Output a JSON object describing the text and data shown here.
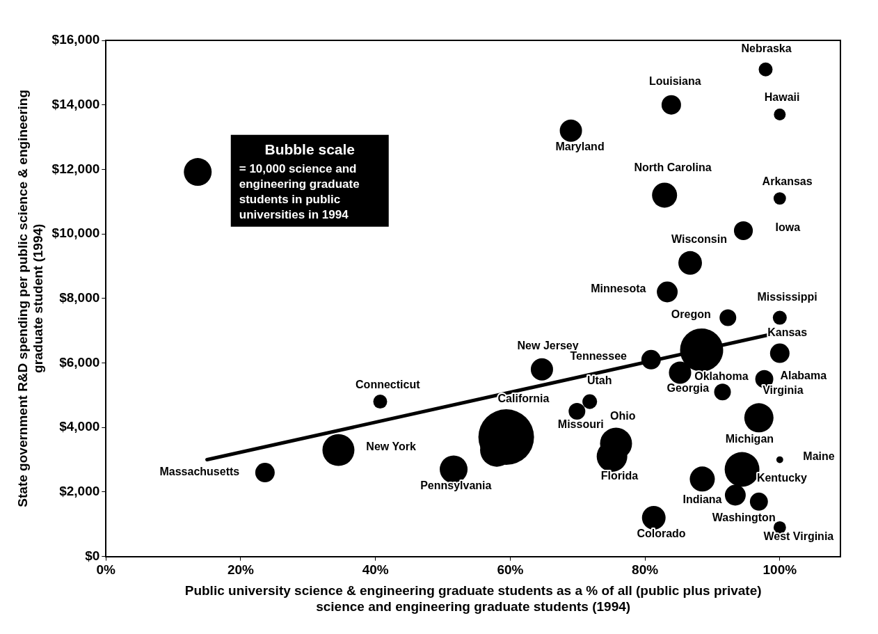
{
  "chart_data": {
    "type": "bubble",
    "xlabel": "Public university science & engineering graduate students as a % of all (public plus private) science and engineering graduate students (1994)",
    "ylabel": "State government R&D spending per public science & engineering graduate student (1994)",
    "legend_title": "Bubble scale",
    "size_legend": [
      {
        "value": 10000,
        "label": "= 10,000 science and engineering graduate students in public universities in 1994"
      }
    ],
    "xlim": [
      0,
      109
    ],
    "xticks": [
      {
        "value": 0,
        "label": "0%"
      },
      {
        "value": 20,
        "label": "20%"
      },
      {
        "value": 40,
        "label": "40%"
      },
      {
        "value": 60,
        "label": "60%"
      },
      {
        "value": 80,
        "label": "80%"
      },
      {
        "value": 100,
        "label": "100%"
      }
    ],
    "ylim": [
      0,
      16000
    ],
    "yticks": [
      {
        "value": 0,
        "label": "$0"
      },
      {
        "value": 2000,
        "label": "$2,000"
      },
      {
        "value": 4000,
        "label": "$4,000"
      },
      {
        "value": 6000,
        "label": "$6,000"
      },
      {
        "value": 8000,
        "label": "$8,000"
      },
      {
        "value": 10000,
        "label": "$10,000"
      },
      {
        "value": 12000,
        "label": "$12,000"
      },
      {
        "value": 14000,
        "label": "$14,000"
      },
      {
        "value": 16000,
        "label": "$16,000"
      }
    ],
    "grid": false,
    "legend": false,
    "series": [
      {
        "color": "#000000",
        "x": [
          97.9,
          83.9,
          100,
          69.0,
          82.9,
          100,
          94.6,
          86.7,
          83.3,
          92.3,
          100,
          88.4,
          100,
          80.9,
          85.2,
          97.7,
          91.5,
          64.7,
          71.8,
          69.9,
          96.9,
          59.4,
          58.0,
          75.7,
          75.1,
          100,
          94.4,
          88.5,
          93.4,
          96.9,
          81.3,
          100,
          40.7,
          34.5,
          23.6,
          51.6
        ],
        "values": [
          15100,
          14000,
          13700,
          13200,
          11200,
          11100,
          10100,
          9100,
          8200,
          7400,
          7400,
          6400,
          6300,
          6100,
          5700,
          5500,
          5100,
          5800,
          4800,
          4500,
          4300,
          3700,
          3300,
          3500,
          3100,
          3000,
          2700,
          2400,
          1900,
          1700,
          1200,
          900,
          4800,
          3300,
          2600,
          2700
        ],
        "sizes": [
          2500,
          4900,
          1800,
          6400,
          8100,
          2000,
          4600,
          7200,
          5600,
          3600,
          2500,
          24000,
          4900,
          4900,
          6400,
          4200,
          3600,
          6400,
          2800,
          3600,
          11000,
          40000,
          14400,
          13200,
          12100,
          600,
          15600,
          8100,
          5600,
          4200,
          7200,
          2000,
          2500,
          13200,
          4900,
          10000
        ]
      },
      {
        "type": "line",
        "color": "#000000",
        "x": [
          15,
          99
        ],
        "values": [
          3000,
          6900
        ]
      }
    ],
    "annotations": [
      {
        "text": "Nebraska",
        "x": 97.9,
        "y": 15100
      },
      {
        "text": "Louisiana",
        "x": 83.9,
        "y": 14000
      },
      {
        "text": "Hawaii",
        "x": 100,
        "y": 13700
      },
      {
        "text": "Maryland",
        "x": 69.0,
        "y": 13200
      },
      {
        "text": "North Carolina",
        "x": 82.9,
        "y": 11200
      },
      {
        "text": "Arkansas",
        "x": 100,
        "y": 11100
      },
      {
        "text": "Iowa",
        "x": 94.6,
        "y": 10100
      },
      {
        "text": "Wisconsin",
        "x": 86.7,
        "y": 9100
      },
      {
        "text": "Minnesota",
        "x": 83.3,
        "y": 8200
      },
      {
        "text": "Mississippi",
        "x": 100,
        "y": 7400
      },
      {
        "text": "Oregon",
        "x": 92.3,
        "y": 7400
      },
      {
        "text": "Kansas",
        "x": 100,
        "y": 6300
      },
      {
        "text": "New Jersey",
        "x": 64.7,
        "y": 5800
      },
      {
        "text": "Tennessee",
        "x": 80.9,
        "y": 6100
      },
      {
        "text": "Alabama",
        "x": 97.7,
        "y": 5500
      },
      {
        "text": "Oklahoma",
        "x": 85.2,
        "y": 5700
      },
      {
        "text": "Utah",
        "x": 71.8,
        "y": 4800
      },
      {
        "text": "Georgia",
        "x": 91.5,
        "y": 5100
      },
      {
        "text": "Virginia",
        "x": 96.9,
        "y": 4300
      },
      {
        "text": "Connecticut",
        "x": 40.7,
        "y": 4800
      },
      {
        "text": "California",
        "x": 59.4,
        "y": 3700
      },
      {
        "text": "Ohio",
        "x": 75.7,
        "y": 3500
      },
      {
        "text": "Missouri",
        "x": 69.9,
        "y": 4500
      },
      {
        "text": "Michigan",
        "x": 94.4,
        "y": 2700
      },
      {
        "text": "Maine",
        "x": 100,
        "y": 3000
      },
      {
        "text": "New York",
        "x": 34.5,
        "y": 3300
      },
      {
        "text": "Massachusetts",
        "x": 23.6,
        "y": 2600
      },
      {
        "text": "Indiana",
        "x": 88.5,
        "y": 2400
      },
      {
        "text": "Kentucky",
        "x": 93.4,
        "y": 1900
      },
      {
        "text": "Florida",
        "x": 75.1,
        "y": 3100
      },
      {
        "text": "Pennsylvania",
        "x": 51.6,
        "y": 2700
      },
      {
        "text": "Washington",
        "x": 96.9,
        "y": 1700
      },
      {
        "text": "Colorado",
        "x": 81.3,
        "y": 1200
      },
      {
        "text": "West Virginia",
        "x": 100,
        "y": 900
      }
    ]
  }
}
